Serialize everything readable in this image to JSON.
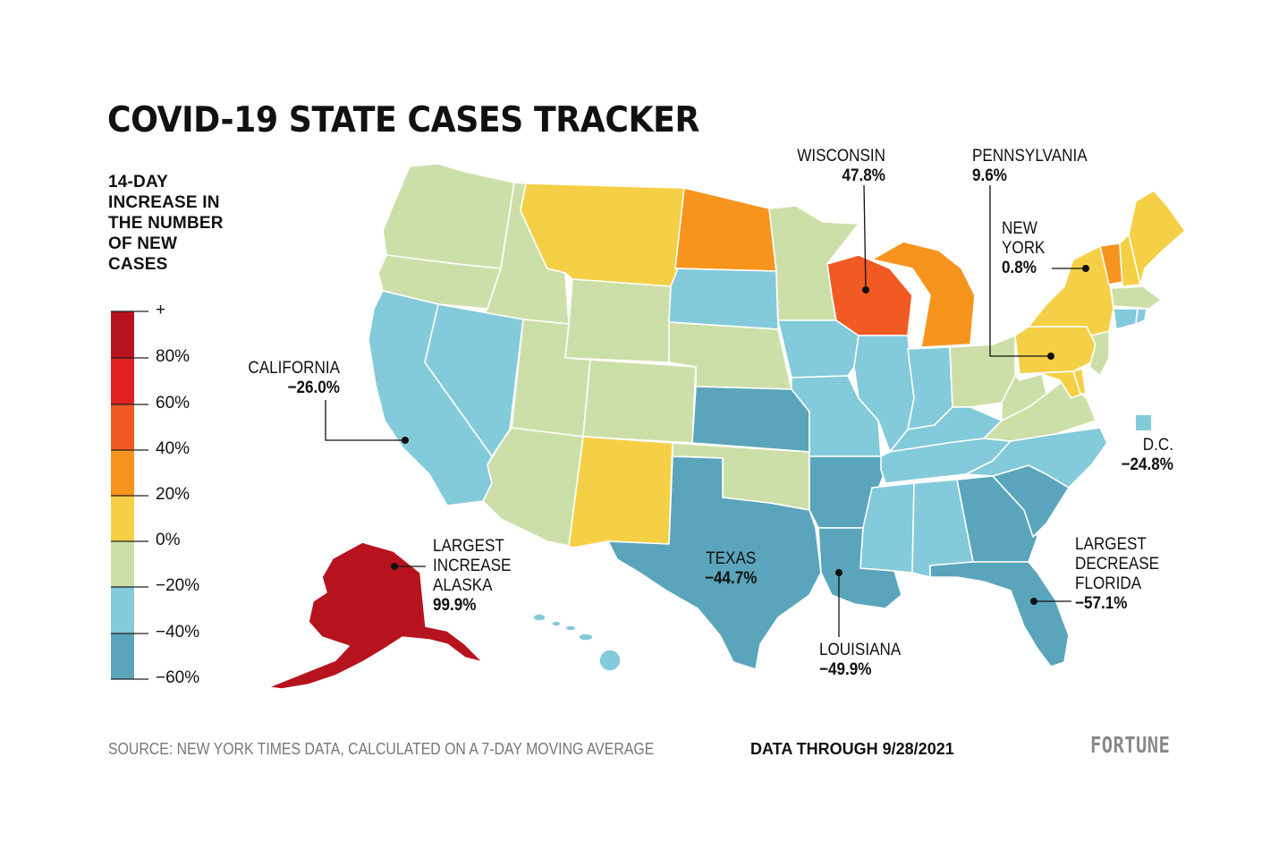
{
  "title": "COVID-19 STATE CASES TRACKER",
  "legend": {
    "heading_lines": [
      "14-DAY",
      "INCREASE IN",
      "THE NUMBER",
      "OF NEW",
      "CASES"
    ],
    "ticks": [
      "+",
      "80%",
      "60%",
      "40%",
      "20%",
      "0%",
      "−20%",
      "−40%",
      "−60%"
    ],
    "colors": {
      "dark_red": "#b7131f",
      "red": "#e02020",
      "red_orange": "#f15a22",
      "orange": "#f7941d",
      "yellow": "#f5cf45",
      "pale_green": "#cddfa8",
      "light_blue": "#83cada",
      "teal_blue": "#5aa5bb"
    }
  },
  "callouts": {
    "wisconsin": {
      "name": "WISCONSIN",
      "value": "47.8%"
    },
    "pennsylvania": {
      "name": "PENNSYLVANIA",
      "value": "9.6%"
    },
    "new_york": {
      "name_lines": [
        "NEW",
        "YORK"
      ],
      "value": "0.8%"
    },
    "california": {
      "name": "CALIFORNIA",
      "value": "−26.0%"
    },
    "dc": {
      "name": "D.C.",
      "value": "−24.8%"
    },
    "alaska": {
      "name_lines": [
        "LARGEST",
        "INCREASE",
        "ALASKA"
      ],
      "value": "99.9%"
    },
    "texas": {
      "name": "TEXAS",
      "value": "−44.7%"
    },
    "louisiana": {
      "name": "LOUISIANA",
      "value": "−49.9%"
    },
    "florida": {
      "name_lines": [
        "LARGEST",
        "DECREASE",
        "FLORIDA"
      ],
      "value": "−57.1%"
    }
  },
  "footer": {
    "source": "SOURCE: NEW YORK TIMES DATA, CALCULATED ON A 7-DAY MOVING AVERAGE",
    "date": "DATA THROUGH 9/28/2021",
    "brand": "FORTUNE"
  }
}
